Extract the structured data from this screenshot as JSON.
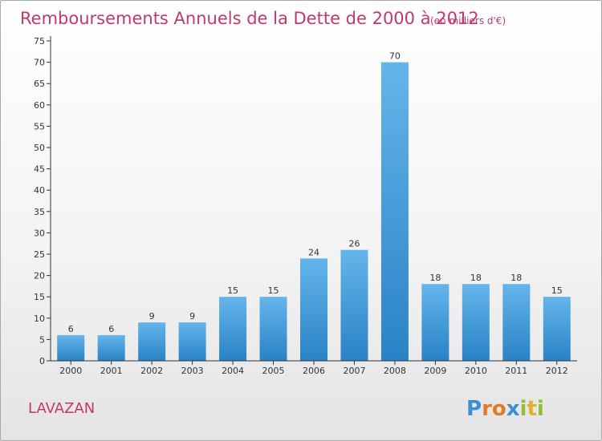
{
  "chart_data": {
    "type": "bar",
    "title": "Remboursements Annuels de la Dette de 2000 à 2012",
    "subtitle": "(en milliers d'€)",
    "categories": [
      "2000",
      "2001",
      "2002",
      "2003",
      "2004",
      "2005",
      "2006",
      "2007",
      "2008",
      "2009",
      "2010",
      "2011",
      "2012"
    ],
    "values": [
      6,
      6,
      9,
      9,
      15,
      15,
      24,
      26,
      70,
      18,
      18,
      18,
      15
    ],
    "ylim": [
      0,
      75
    ],
    "ytick_step": 5,
    "grid": false,
    "colors": {
      "bar_light": "#64b5ea",
      "bar_dark": "#2a82c6",
      "title": "#c2386c",
      "axis": "#333333"
    }
  },
  "location_label": "LAVAZAN",
  "brand": {
    "letters": [
      "P",
      "r",
      "o",
      "x",
      "i",
      "t",
      "i"
    ],
    "colors": [
      "#3c8fd4",
      "#e07b2a",
      "#e07b2a",
      "#3c8fd4",
      "#8dbf3a",
      "#e0b02a",
      "#8dbf3a"
    ]
  }
}
